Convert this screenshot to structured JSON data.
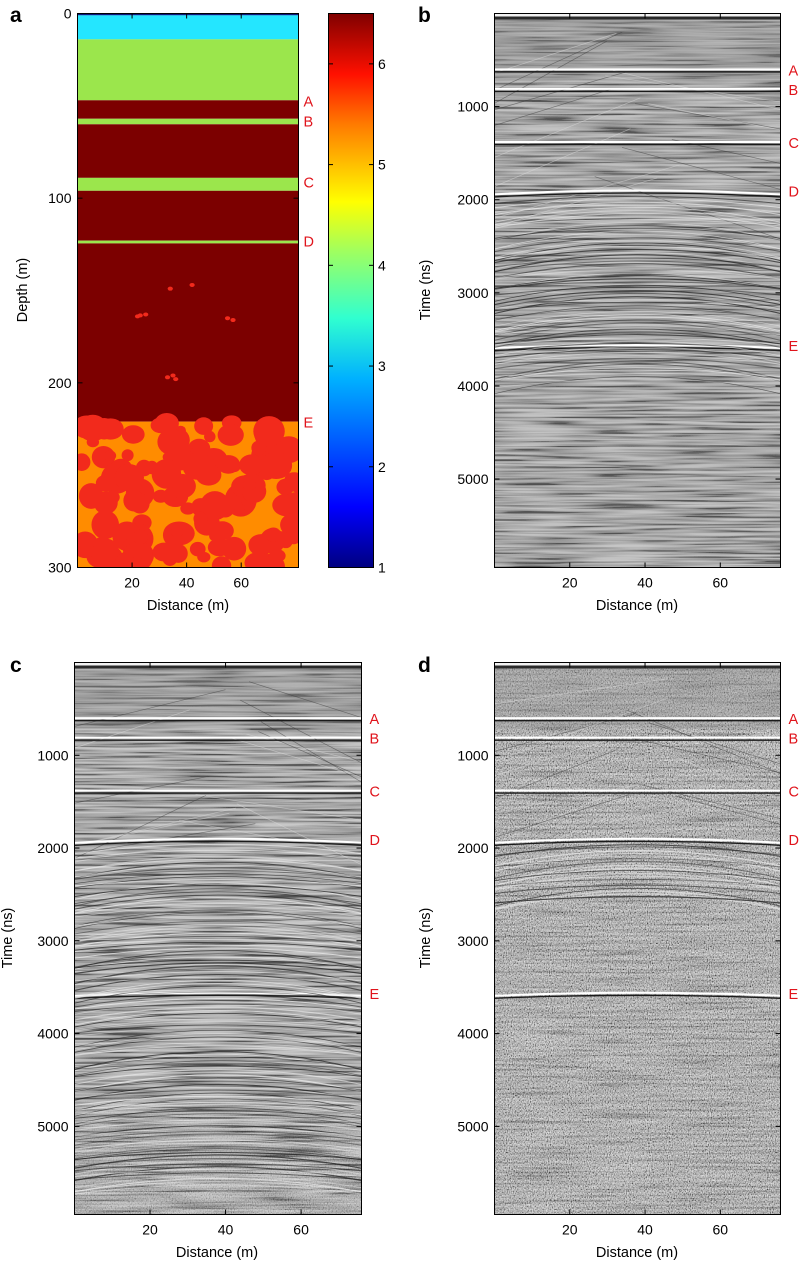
{
  "chart_data": [
    {
      "panel": "a",
      "type": "heatmap",
      "xlabel": "Distance (m)",
      "ylabel": "Depth (m)",
      "xlim": [
        0,
        81
      ],
      "ylim": [
        0,
        300
      ],
      "y_reversed": true,
      "xticks": [
        20,
        40,
        60
      ],
      "yticks": [
        0,
        100,
        200,
        300
      ],
      "colorbar": {
        "range": [
          1,
          6.5
        ],
        "ticks": [
          1,
          2,
          3,
          4,
          5,
          6
        ],
        "colormap": "jet"
      },
      "layers": [
        {
          "from": 0,
          "to": 1,
          "value": 1.0,
          "color": "#0a1a80"
        },
        {
          "from": 1,
          "to": 14,
          "value": 3.2,
          "color": "#24e6ff"
        },
        {
          "from": 14,
          "to": 47,
          "value": 4.1,
          "color": "#9be64c"
        },
        {
          "from": 47,
          "to": 57,
          "value": 6.5,
          "color": "#7c0000"
        },
        {
          "from": 57,
          "to": 60,
          "value": 4.1,
          "color": "#9be64c"
        },
        {
          "from": 60,
          "to": 89,
          "value": 6.5,
          "color": "#7c0000"
        },
        {
          "from": 89,
          "to": 96,
          "value": 4.1,
          "color": "#9be64c"
        },
        {
          "from": 96,
          "to": 123,
          "value": 6.5,
          "color": "#7c0000"
        },
        {
          "from": 123,
          "to": 124.5,
          "value": 4.1,
          "color": "#9be64c"
        },
        {
          "from": 124.5,
          "to": 221,
          "value": 6.5,
          "color": "#7c0000"
        },
        {
          "from": 221,
          "to": 300,
          "value": 5.3,
          "color": "#ff8c00"
        }
      ],
      "inclusions_color": "#f22a1c",
      "annotations": [
        {
          "label": "A",
          "y": 47
        },
        {
          "label": "B",
          "y": 58
        },
        {
          "label": "C",
          "y": 91
        },
        {
          "label": "D",
          "y": 123
        },
        {
          "label": "E",
          "y": 221
        }
      ]
    },
    {
      "panel": "b",
      "type": "heatmap",
      "xlabel": "Distance (m)",
      "ylabel": "Time (ns)",
      "xlim": [
        0,
        76
      ],
      "ylim": [
        0,
        5950
      ],
      "y_reversed": true,
      "xticks": [
        20,
        40,
        60
      ],
      "yticks": [
        1000,
        2000,
        3000,
        4000,
        5000
      ],
      "reflectors": [
        {
          "label": "A",
          "t": 600
        },
        {
          "label": "B",
          "t": 810
        },
        {
          "label": "C",
          "t": 1380
        },
        {
          "label": "D",
          "t": 1900
        },
        {
          "label": "E",
          "t": 3560
        }
      ],
      "noise_onset_t": 3900
    },
    {
      "panel": "c",
      "type": "heatmap",
      "xlabel": "Distance (m)",
      "ylabel": "Time (ns)",
      "xlim": [
        0,
        76
      ],
      "ylim": [
        0,
        5950
      ],
      "y_reversed": true,
      "xticks": [
        20,
        40,
        60
      ],
      "yticks": [
        1000,
        2000,
        3000,
        4000,
        5000
      ],
      "reflectors": [
        {
          "label": "A",
          "t": 600
        },
        {
          "label": "B",
          "t": 810
        },
        {
          "label": "C",
          "t": 1380
        },
        {
          "label": "D",
          "t": 1900
        },
        {
          "label": "E",
          "t": 3560
        }
      ],
      "noise_onset_t": 5600
    },
    {
      "panel": "d",
      "type": "heatmap",
      "xlabel": "Distance (m)",
      "ylabel": "Time (ns)",
      "xlim": [
        0,
        76
      ],
      "ylim": [
        0,
        5950
      ],
      "y_reversed": true,
      "xticks": [
        20,
        40,
        60
      ],
      "yticks": [
        1000,
        2000,
        3000,
        4000,
        5000
      ],
      "reflectors": [
        {
          "label": "A",
          "t": 600
        },
        {
          "label": "B",
          "t": 810
        },
        {
          "label": "C",
          "t": 1380
        },
        {
          "label": "D",
          "t": 1900
        },
        {
          "label": "E",
          "t": 3560
        }
      ],
      "noise_onset_t": 2500
    }
  ]
}
